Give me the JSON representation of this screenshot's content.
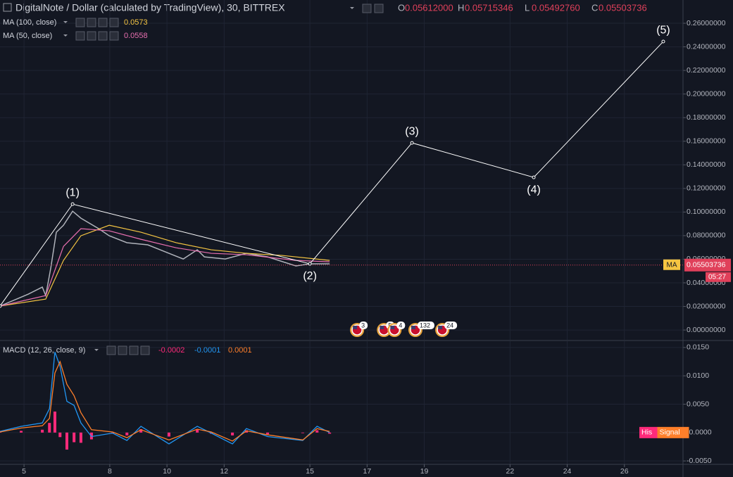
{
  "header": {
    "title": "DigitalNote / Dollar (calculated by TradingView), 30, BITTREX",
    "ohlc": [
      {
        "key": "O",
        "value": "0.05612000"
      },
      {
        "key": "H",
        "value": "0.05715346"
      },
      {
        "key": "L",
        "value": "0.05492760"
      },
      {
        "key": "C",
        "value": "0.05503736"
      }
    ]
  },
  "chart_data": [
    {
      "type": "line",
      "xlim": [
        4.16,
        28.05
      ],
      "ylim": [
        -0.0083,
        0.2797
      ],
      "yticks": [
        {
          "value": 0,
          "label": "0.00000000"
        },
        {
          "value": 0.02,
          "label": "0.02000000"
        },
        {
          "value": 0.04,
          "label": "0.04000000"
        },
        {
          "value": 0.06,
          "label": "0.06000000"
        },
        {
          "value": 0.08,
          "label": "0.08000000"
        },
        {
          "value": 0.1,
          "label": "0.10000000"
        },
        {
          "value": 0.12,
          "label": "0.12000000"
        },
        {
          "value": 0.14,
          "label": "0.14000000"
        },
        {
          "value": 0.16,
          "label": "0.16000000"
        },
        {
          "value": 0.18,
          "label": "0.18000000"
        },
        {
          "value": 0.2,
          "label": "0.20000000"
        },
        {
          "value": 0.22,
          "label": "0.22000000"
        },
        {
          "value": 0.24,
          "label": "0.24000000"
        },
        {
          "value": 0.26,
          "label": "0.26000000"
        }
      ],
      "grid": true,
      "series": [
        {
          "color": "#b0b3bb",
          "x": [
            4.16,
            5.15,
            5.64,
            5.76,
            5.94,
            6.13,
            6.38,
            6.7,
            6.99,
            7.61,
            7.98,
            8.6,
            9.33,
            10.07,
            10.57,
            11.06,
            11.31,
            12.04,
            12.78,
            13.52,
            14.51,
            15.0,
            15.69
          ],
          "values": [
            0.0203,
            0.0304,
            0.0364,
            0.0292,
            0.0531,
            0.0829,
            0.0888,
            0.1007,
            0.0948,
            0.0859,
            0.0799,
            0.074,
            0.0722,
            0.065,
            0.0602,
            0.068,
            0.062,
            0.0602,
            0.065,
            0.062,
            0.0543,
            0.0561,
            0.0561
          ]
        },
        {
          "name": "MA (100, close)",
          "legend_value": "0.0573",
          "color": "#f5c542",
          "x": [
            4.16,
            5.76,
            6.38,
            6.99,
            7.98,
            9.09,
            10.32,
            11.55,
            12.78,
            14.02,
            15.69
          ],
          "values": [
            0.0203,
            0.0262,
            0.059,
            0.0799,
            0.0888,
            0.0829,
            0.074,
            0.068,
            0.065,
            0.0632,
            0.059
          ]
        },
        {
          "name": "MA (50, close)",
          "legend_value": "0.0558",
          "color": "#e96fb0",
          "x": [
            4.16,
            5.76,
            6.38,
            6.99,
            7.98,
            9.09,
            10.32,
            11.55,
            12.78,
            14.51,
            15.69
          ],
          "values": [
            0.0203,
            0.0292,
            0.0709,
            0.0859,
            0.0841,
            0.0769,
            0.0697,
            0.065,
            0.0638,
            0.059,
            0.0578
          ]
        }
      ],
      "last_price": {
        "value": 0.05503736,
        "label": "0.05503736",
        "tag": "MA",
        "countdown": "05:27",
        "color": "#e0405a"
      },
      "wave": {
        "color": "#ffffff",
        "points": [
          {
            "x": 4.16,
            "y": 0.0203
          },
          {
            "x": 6.7,
            "y": 0.1067,
            "label": "(1)"
          },
          {
            "x": 15.0,
            "y": 0.0561,
            "label": "(2)"
          },
          {
            "x": 18.57,
            "y": 0.1586,
            "label": "(3)"
          },
          {
            "x": 22.83,
            "y": 0.1294,
            "label": "(4)"
          },
          {
            "x": 27.36,
            "y": 0.2445,
            "label": "(5)"
          }
        ]
      },
      "events": [
        {
          "x": 16.65,
          "count": 3
        },
        {
          "x": 17.59,
          "count": 5
        },
        {
          "x": 17.96,
          "count": 4
        },
        {
          "x": 18.69,
          "count": 132
        },
        {
          "x": 19.63,
          "count": 24
        }
      ]
    },
    {
      "type": "macd",
      "title": "MACD (12, 26, close, 9)",
      "xlim": [
        4.16,
        28.05
      ],
      "ylim": [
        -0.0056,
        0.0161
      ],
      "xticks": [
        5,
        8,
        10,
        12,
        15,
        17,
        19,
        22,
        24,
        26
      ],
      "yticks": [
        {
          "value": -0.005,
          "label": "-0.0050"
        },
        {
          "value": 0,
          "label": "-0.0000"
        },
        {
          "value": 0.005,
          "label": "0.0050"
        },
        {
          "value": 0.01,
          "label": "0.0100"
        },
        {
          "value": 0.015,
          "label": "0.0150"
        }
      ],
      "grid": true,
      "x": [
        4.16,
        4.9,
        5.64,
        5.89,
        6.08,
        6.26,
        6.5,
        6.75,
        6.99,
        7.36,
        8.1,
        8.6,
        9.09,
        10.07,
        11.06,
        11.55,
        12.29,
        12.78,
        13.52,
        14.75,
        15.25,
        15.69
      ],
      "series": [
        {
          "name": "His",
          "legend_value": "-0.0002",
          "color": "#ff2a7a",
          "kind": "histogram",
          "values": [
            0.0001,
            0.0003,
            0.0005,
            0.0017,
            0.0037,
            -0.0008,
            -0.003,
            -0.0017,
            -0.0018,
            -0.0012,
            -0.0002,
            -0.0005,
            0.0006,
            -0.0007,
            0.0005,
            -0.0002,
            -0.0005,
            0.0004,
            -0.0003,
            -0.0001,
            0.0004,
            -0.0002
          ]
        },
        {
          "legend_value": "-0.0001",
          "color": "#2196f3",
          "kind": "line",
          "values": [
            0.0002,
            0.0011,
            0.0017,
            0.0042,
            0.0142,
            0.0117,
            0.0055,
            0.0048,
            0.0017,
            -0.0007,
            -0.0001,
            -0.0014,
            0.0011,
            -0.002,
            0.0011,
            -0.0001,
            -0.002,
            0.0007,
            -0.0007,
            -0.0014,
            0.0011,
            0.0
          ]
        },
        {
          "name": "Signal",
          "legend_value": "0.0001",
          "color": "#ff7f2a",
          "kind": "line",
          "values": [
            0.0001,
            0.0008,
            0.0012,
            0.0025,
            0.0105,
            0.0125,
            0.0085,
            0.0065,
            0.0035,
            0.0005,
            0.0001,
            -0.0009,
            0.0005,
            -0.0013,
            0.0006,
            0.0001,
            -0.0015,
            0.0003,
            -0.0004,
            -0.0013,
            0.0007,
            0.0002
          ]
        }
      ]
    }
  ]
}
